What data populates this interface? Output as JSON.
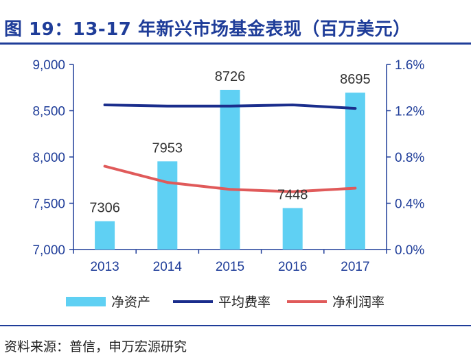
{
  "header": {
    "title": "图 19：13-17 年新兴市场基金表现（百万美元）"
  },
  "footer": {
    "source": "资料来源：普信，申万宏源研究"
  },
  "colors": {
    "title": "#1f3d99",
    "axis": "#1f3d99",
    "bar": "#5fd0f3",
    "fee_line": "#1a2d8c",
    "margin_line": "#e05a5a",
    "label": "#333333"
  },
  "chart_data": {
    "type": "bar",
    "categories": [
      "2013",
      "2014",
      "2015",
      "2016",
      "2017"
    ],
    "series": [
      {
        "name": "净资产",
        "type": "bar",
        "axis": "left",
        "values": [
          7306,
          7953,
          8726,
          7448,
          8695
        ],
        "data_labels": [
          "7306",
          "7953",
          "8726",
          "7448",
          "8695"
        ]
      },
      {
        "name": "平均费率",
        "type": "line",
        "axis": "right",
        "values": [
          1.25,
          1.24,
          1.24,
          1.25,
          1.22
        ]
      },
      {
        "name": "净利润率",
        "type": "line",
        "axis": "right",
        "values": [
          0.72,
          0.58,
          0.52,
          0.5,
          0.53
        ]
      }
    ],
    "y_left": {
      "min": 7000,
      "max": 9000,
      "ticks": [
        7000,
        7500,
        8000,
        8500,
        9000
      ],
      "tick_labels": [
        "7,000",
        "7,500",
        "8,000",
        "8,500",
        "9,000"
      ]
    },
    "y_right": {
      "min": 0,
      "max": 1.6,
      "unit": "%",
      "ticks": [
        0,
        0.4,
        0.8,
        1.2,
        1.6
      ],
      "tick_labels": [
        "0.0%",
        "0.4%",
        "0.8%",
        "1.2%",
        "1.6%"
      ]
    },
    "legend": [
      "净资产",
      "平均费率",
      "净利润率"
    ],
    "legend_position": "bottom",
    "grid": false
  }
}
